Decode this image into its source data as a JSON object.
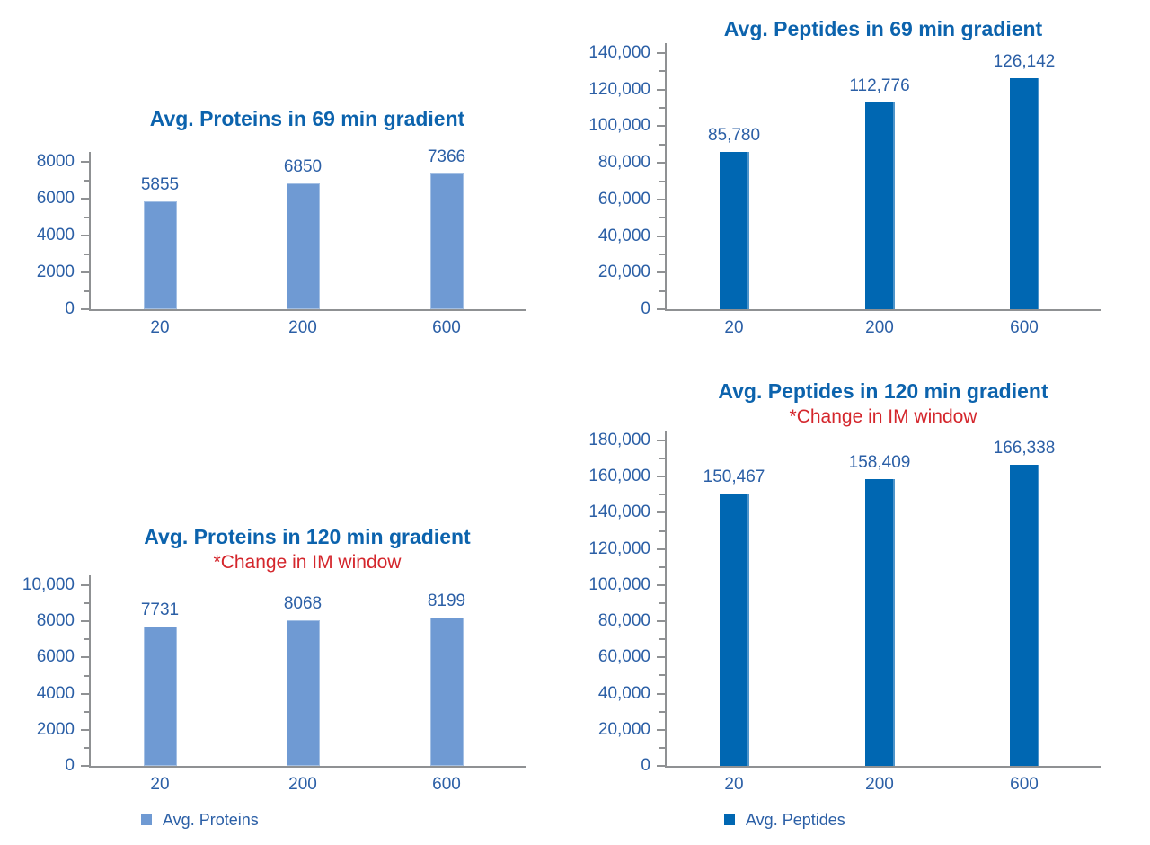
{
  "colors": {
    "background": "#ffffff",
    "title_blue": "#0c63ad",
    "label_blue": "#2b5fa6",
    "subtitle_red": "#d4262c",
    "axis_gray": "#8f9193",
    "proteins_bar": "#6f9ad3",
    "proteins_bar_edge": "#a4c0e4",
    "peptides_bar": "#0067b2",
    "peptides_bar_edge": "#4e95cb"
  },
  "chart_data": [
    {
      "id": "avg-proteins-69min",
      "type": "bar",
      "title": "Avg. Proteins in 69 min gradient",
      "categories": [
        "20",
        "200",
        "600"
      ],
      "values": [
        5855,
        6850,
        7366
      ],
      "value_labels": [
        "5855",
        "6850",
        "7366"
      ],
      "series_name": "Avg. Proteins",
      "series_color_key": "proteins",
      "ylim": [
        0,
        8000
      ],
      "ytick_step": 2000,
      "ytick_labels": [
        "0",
        "2000",
        "4000",
        "6000",
        "8000"
      ],
      "minor_ticks": true,
      "grid": false,
      "legend": null
    },
    {
      "id": "avg-peptides-69min",
      "type": "bar",
      "title": "Avg. Peptides in 69 min gradient",
      "categories": [
        "20",
        "200",
        "600"
      ],
      "values": [
        85780,
        112776,
        126142
      ],
      "value_labels": [
        "85,780",
        "112,776",
        "126,142"
      ],
      "series_name": "Avg. Peptides",
      "series_color_key": "peptides",
      "ylim": [
        0,
        140000
      ],
      "ytick_step": 20000,
      "ytick_labels": [
        "0",
        "20,000",
        "40,000",
        "60,000",
        "80,000",
        "100,000",
        "120,000",
        "140,000"
      ],
      "minor_ticks": true,
      "grid": false,
      "legend": null
    },
    {
      "id": "avg-proteins-120min",
      "type": "bar",
      "title": "Avg. Proteins in 120 min gradient",
      "subtitle": "*Change in IM window",
      "categories": [
        "20",
        "200",
        "600"
      ],
      "values": [
        7731,
        8068,
        8199
      ],
      "value_labels": [
        "7731",
        "8068",
        "8199"
      ],
      "series_name": "Avg. Proteins",
      "series_color_key": "proteins",
      "ylim": [
        0,
        10000
      ],
      "ytick_step": 2000,
      "ytick_labels": [
        "0",
        "2000",
        "4000",
        "6000",
        "8000",
        "10,000"
      ],
      "minor_ticks": true,
      "grid": false,
      "legend": {
        "label": "Avg. Proteins"
      }
    },
    {
      "id": "avg-peptides-120min",
      "type": "bar",
      "title": "Avg. Peptides in 120 min gradient",
      "subtitle": "*Change in IM window",
      "categories": [
        "20",
        "200",
        "600"
      ],
      "values": [
        150467,
        158409,
        166338
      ],
      "value_labels": [
        "150,467",
        "158,409",
        "166,338"
      ],
      "series_name": "Avg. Peptides",
      "series_color_key": "peptides",
      "ylim": [
        0,
        180000
      ],
      "ytick_step": 20000,
      "ytick_labels": [
        "0",
        "20,000",
        "40,000",
        "60,000",
        "80,000",
        "100,000",
        "120,000",
        "140,000",
        "160,000",
        "180,000"
      ],
      "minor_ticks": true,
      "grid": false,
      "legend": {
        "label": "Avg. Peptides"
      }
    }
  ]
}
